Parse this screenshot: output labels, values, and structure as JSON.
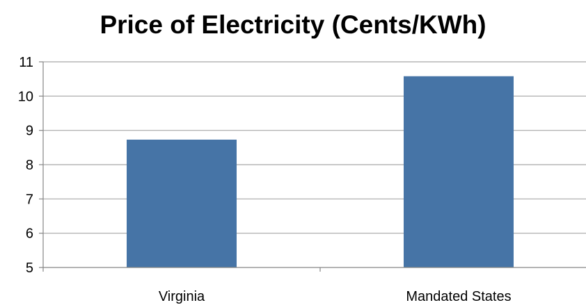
{
  "chart_data": {
    "type": "bar",
    "title": "Price of Electricity (Cents/KWh)",
    "categories": [
      "Virginia",
      "Mandated States"
    ],
    "values": [
      8.73,
      10.58
    ],
    "xlabel": "",
    "ylabel": "",
    "ylim": [
      5,
      11
    ],
    "yticks": [
      5,
      6,
      7,
      8,
      9,
      10,
      11
    ],
    "grid": true,
    "legend": "none",
    "bar_color": "#4674A6",
    "grid_color": "#A6A6A6",
    "axis_color": "#868686"
  }
}
